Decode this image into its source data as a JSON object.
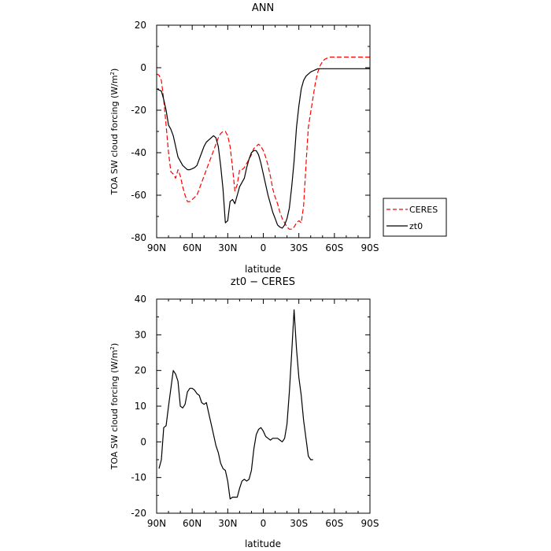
{
  "chart_data": [
    {
      "type": "line",
      "title": "ANN",
      "xlabel": "latitude",
      "ylabel_main": "TOA SW cloud forcing (W/m",
      "ylabel_sup": "2",
      "ylabel_end": ")",
      "xlim": [
        90,
        -90
      ],
      "ylim": [
        -80,
        20
      ],
      "xticks": [
        {
          "value": 90,
          "label": "90N"
        },
        {
          "value": 60,
          "label": "60N"
        },
        {
          "value": 30,
          "label": "30N"
        },
        {
          "value": 0,
          "label": "0"
        },
        {
          "value": -30,
          "label": "30S"
        },
        {
          "value": -60,
          "label": "60S"
        },
        {
          "value": -90,
          "label": "90S"
        }
      ],
      "yticks": [
        20,
        0,
        -20,
        -40,
        -60,
        -80
      ],
      "legend_position": "right",
      "series": [
        {
          "name": "CERES",
          "color": "#ff0000",
          "dash": "dashed",
          "points": [
            [
              90,
              -3
            ],
            [
              88,
              -3.5
            ],
            [
              86,
              -6
            ],
            [
              84,
              -15
            ],
            [
              82,
              -27
            ],
            [
              80,
              -40
            ],
            [
              78,
              -49
            ],
            [
              76,
              -50
            ],
            [
              74,
              -52
            ],
            [
              72,
              -48
            ],
            [
              70,
              -51
            ],
            [
              68,
              -56
            ],
            [
              66,
              -60
            ],
            [
              64,
              -63
            ],
            [
              62,
              -63
            ],
            [
              60,
              -62
            ],
            [
              58,
              -61
            ],
            [
              56,
              -60
            ],
            [
              54,
              -57
            ],
            [
              52,
              -54
            ],
            [
              50,
              -51
            ],
            [
              48,
              -48
            ],
            [
              46,
              -45
            ],
            [
              44,
              -42
            ],
            [
              42,
              -39
            ],
            [
              40,
              -36
            ],
            [
              38,
              -33
            ],
            [
              36,
              -31
            ],
            [
              34,
              -30
            ],
            [
              32,
              -30
            ],
            [
              30,
              -32
            ],
            [
              28,
              -37
            ],
            [
              26,
              -47
            ],
            [
              24,
              -58
            ],
            [
              22,
              -55
            ],
            [
              20,
              -48
            ],
            [
              18,
              -48
            ],
            [
              16,
              -47
            ],
            [
              14,
              -45
            ],
            [
              12,
              -43
            ],
            [
              10,
              -41
            ],
            [
              8,
              -38
            ],
            [
              6,
              -37
            ],
            [
              4,
              -36
            ],
            [
              2,
              -37
            ],
            [
              0,
              -39
            ],
            [
              -2,
              -42
            ],
            [
              -4,
              -46
            ],
            [
              -6,
              -51
            ],
            [
              -8,
              -57
            ],
            [
              -10,
              -61
            ],
            [
              -12,
              -64
            ],
            [
              -14,
              -68
            ],
            [
              -16,
              -71
            ],
            [
              -18,
              -73
            ],
            [
              -20,
              -75
            ],
            [
              -22,
              -76
            ],
            [
              -24,
              -76
            ],
            [
              -26,
              -75
            ],
            [
              -28,
              -73
            ],
            [
              -30,
              -72
            ],
            [
              -32,
              -73
            ],
            [
              -34,
              -65
            ],
            [
              -36,
              -46
            ],
            [
              -38,
              -28
            ],
            [
              -40,
              -21
            ],
            [
              -42,
              -14
            ],
            [
              -44,
              -7
            ],
            [
              -46,
              -2
            ],
            [
              -48,
              1
            ],
            [
              -50,
              3
            ],
            [
              -52,
              4
            ],
            [
              -54,
              4.5
            ],
            [
              -56,
              5
            ],
            [
              -58,
              5
            ],
            [
              -60,
              5
            ],
            [
              -62,
              5
            ],
            [
              -64,
              5
            ],
            [
              -66,
              5
            ],
            [
              -68,
              5
            ],
            [
              -70,
              5
            ],
            [
              -72,
              5
            ],
            [
              -74,
              5
            ],
            [
              -76,
              5
            ],
            [
              -78,
              5
            ],
            [
              -80,
              5
            ],
            [
              -82,
              5
            ],
            [
              -84,
              5
            ],
            [
              -86,
              5
            ],
            [
              -88,
              5
            ],
            [
              -90,
              5
            ]
          ]
        },
        {
          "name": "zt0",
          "color": "#000000",
          "dash": "solid",
          "points": [
            [
              90,
              -10
            ],
            [
              88,
              -10.5
            ],
            [
              86,
              -11
            ],
            [
              84,
              -15
            ],
            [
              82,
              -20
            ],
            [
              80,
              -27
            ],
            [
              78,
              -29
            ],
            [
              76,
              -32
            ],
            [
              74,
              -37
            ],
            [
              72,
              -42
            ],
            [
              70,
              -44
            ],
            [
              68,
              -46
            ],
            [
              66,
              -47
            ],
            [
              64,
              -48
            ],
            [
              62,
              -48
            ],
            [
              60,
              -47.5
            ],
            [
              58,
              -47
            ],
            [
              56,
              -46
            ],
            [
              54,
              -43
            ],
            [
              52,
              -40
            ],
            [
              50,
              -37
            ],
            [
              48,
              -35
            ],
            [
              46,
              -34
            ],
            [
              44,
              -33
            ],
            [
              42,
              -32
            ],
            [
              40,
              -33
            ],
            [
              38,
              -37
            ],
            [
              36,
              -46
            ],
            [
              34,
              -57
            ],
            [
              32,
              -73
            ],
            [
              30,
              -72
            ],
            [
              28,
              -63
            ],
            [
              26,
              -62
            ],
            [
              24,
              -64
            ],
            [
              22,
              -60
            ],
            [
              20,
              -56
            ],
            [
              18,
              -54
            ],
            [
              16,
              -52
            ],
            [
              14,
              -47
            ],
            [
              12,
              -43
            ],
            [
              10,
              -40
            ],
            [
              8,
              -39
            ],
            [
              6,
              -39
            ],
            [
              4,
              -41
            ],
            [
              2,
              -45
            ],
            [
              0,
              -50
            ],
            [
              -2,
              -55
            ],
            [
              -4,
              -60
            ],
            [
              -6,
              -64
            ],
            [
              -8,
              -68
            ],
            [
              -10,
              -71
            ],
            [
              -12,
              -74
            ],
            [
              -14,
              -75
            ],
            [
              -16,
              -75.5
            ],
            [
              -18,
              -74
            ],
            [
              -20,
              -71
            ],
            [
              -22,
              -66
            ],
            [
              -24,
              -56
            ],
            [
              -26,
              -44
            ],
            [
              -28,
              -28
            ],
            [
              -30,
              -18
            ],
            [
              -32,
              -10
            ],
            [
              -34,
              -6
            ],
            [
              -36,
              -4
            ],
            [
              -38,
              -3
            ],
            [
              -40,
              -2
            ],
            [
              -42,
              -1.5
            ],
            [
              -44,
              -1
            ],
            [
              -46,
              -0.5
            ],
            [
              -48,
              -0.5
            ],
            [
              -50,
              -0.5
            ],
            [
              -52,
              -0.5
            ],
            [
              -54,
              -0.5
            ],
            [
              -56,
              -0.5
            ],
            [
              -58,
              -0.5
            ],
            [
              -60,
              -0.5
            ],
            [
              -62,
              -0.5
            ],
            [
              -64,
              -0.5
            ],
            [
              -66,
              -0.5
            ],
            [
              -68,
              -0.5
            ],
            [
              -70,
              -0.5
            ],
            [
              -72,
              -0.5
            ],
            [
              -74,
              -0.5
            ],
            [
              -76,
              -0.5
            ],
            [
              -78,
              -0.5
            ],
            [
              -80,
              -0.5
            ],
            [
              -82,
              -0.5
            ],
            [
              -84,
              -0.5
            ],
            [
              -86,
              -0.5
            ],
            [
              -88,
              -0.5
            ],
            [
              -90,
              -0.5
            ]
          ]
        }
      ]
    },
    {
      "type": "line",
      "title": "zt0 − CERES",
      "xlabel": "latitude",
      "ylabel_main": "TOA SW cloud forcing (W/m",
      "ylabel_sup": "2",
      "ylabel_end": ")",
      "xlim": [
        90,
        -90
      ],
      "ylim": [
        -20,
        40
      ],
      "xticks": [
        {
          "value": 90,
          "label": "90N"
        },
        {
          "value": 60,
          "label": "60N"
        },
        {
          "value": 30,
          "label": "30N"
        },
        {
          "value": 0,
          "label": "0"
        },
        {
          "value": -30,
          "label": "30S"
        },
        {
          "value": -60,
          "label": "60S"
        },
        {
          "value": -90,
          "label": "90S"
        }
      ],
      "yticks": [
        40,
        30,
        20,
        10,
        0,
        -10,
        -20
      ],
      "series": [
        {
          "color": "#000000",
          "dash": "solid",
          "points": [
            [
              88,
              -7.5
            ],
            [
              86,
              -5
            ],
            [
              84,
              4
            ],
            [
              82,
              4.5
            ],
            [
              80,
              10
            ],
            [
              78,
              15
            ],
            [
              76,
              20
            ],
            [
              74,
              19
            ],
            [
              72,
              17
            ],
            [
              70,
              10
            ],
            [
              68,
              9.5
            ],
            [
              66,
              10.5
            ],
            [
              64,
              14
            ],
            [
              62,
              15
            ],
            [
              60,
              15
            ],
            [
              58,
              14.5
            ],
            [
              56,
              13.5
            ],
            [
              54,
              13
            ],
            [
              52,
              11
            ],
            [
              50,
              10.5
            ],
            [
              48,
              11
            ],
            [
              46,
              8
            ],
            [
              44,
              5
            ],
            [
              42,
              2
            ],
            [
              40,
              -1
            ],
            [
              38,
              -3
            ],
            [
              36,
              -6
            ],
            [
              34,
              -7.5
            ],
            [
              32,
              -8
            ],
            [
              30,
              -11
            ],
            [
              28,
              -16
            ],
            [
              26,
              -15.5
            ],
            [
              24,
              -15.5
            ],
            [
              22,
              -15.5
            ],
            [
              20,
              -13
            ],
            [
              18,
              -11
            ],
            [
              16,
              -10.5
            ],
            [
              14,
              -11
            ],
            [
              12,
              -10.5
            ],
            [
              10,
              -8
            ],
            [
              8,
              -2
            ],
            [
              6,
              2
            ],
            [
              4,
              3.5
            ],
            [
              2,
              4
            ],
            [
              0,
              3
            ],
            [
              -2,
              1.5
            ],
            [
              -4,
              1
            ],
            [
              -6,
              0.5
            ],
            [
              -8,
              1
            ],
            [
              -10,
              1
            ],
            [
              -12,
              1
            ],
            [
              -14,
              0.5
            ],
            [
              -16,
              0
            ],
            [
              -18,
              1
            ],
            [
              -20,
              5
            ],
            [
              -22,
              14
            ],
            [
              -24,
              25
            ],
            [
              -26,
              37
            ],
            [
              -28,
              26
            ],
            [
              -30,
              18
            ],
            [
              -32,
              13
            ],
            [
              -34,
              6
            ],
            [
              -36,
              1
            ],
            [
              -38,
              -4
            ],
            [
              -40,
              -5
            ],
            [
              -42,
              -5
            ]
          ]
        }
      ]
    }
  ]
}
